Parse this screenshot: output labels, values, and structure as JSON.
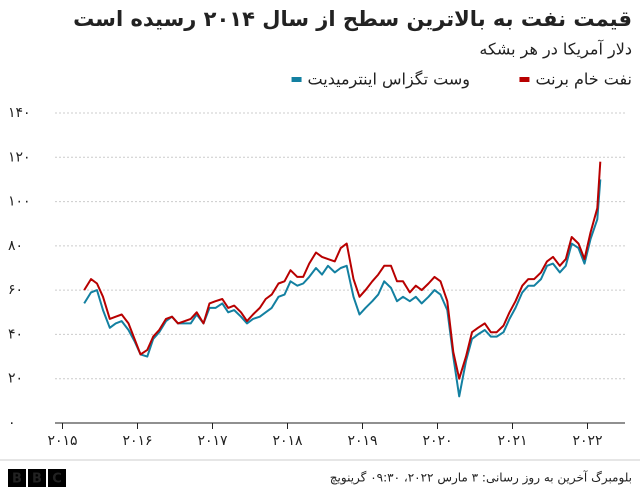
{
  "chart_data": {
    "type": "line",
    "title": "قیمت نفت به بالاترین سطح از سال ۲۰۱۴ رسیده است",
    "subtitle": "دلار آمریکا در هر بشکه",
    "x": [
      2015.29,
      2015.38,
      2015.46,
      2015.54,
      2015.63,
      2015.71,
      2015.79,
      2015.88,
      2015.96,
      2016.04,
      2016.13,
      2016.21,
      2016.29,
      2016.38,
      2016.46,
      2016.54,
      2016.63,
      2016.71,
      2016.79,
      2016.88,
      2016.96,
      2017.04,
      2017.13,
      2017.21,
      2017.29,
      2017.38,
      2017.46,
      2017.54,
      2017.63,
      2017.71,
      2017.79,
      2017.88,
      2017.96,
      2018.04,
      2018.13,
      2018.21,
      2018.29,
      2018.38,
      2018.46,
      2018.54,
      2018.63,
      2018.71,
      2018.79,
      2018.88,
      2018.96,
      2019.04,
      2019.13,
      2019.21,
      2019.29,
      2019.38,
      2019.46,
      2019.54,
      2019.63,
      2019.71,
      2019.79,
      2019.88,
      2019.96,
      2020.04,
      2020.13,
      2020.21,
      2020.29,
      2020.38,
      2020.46,
      2020.54,
      2020.63,
      2020.71,
      2020.79,
      2020.88,
      2020.96,
      2021.04,
      2021.13,
      2021.21,
      2021.29,
      2021.38,
      2021.46,
      2021.54,
      2021.63,
      2021.71,
      2021.79,
      2021.88,
      2021.96,
      2022.04,
      2022.13,
      2022.17
    ],
    "series": [
      {
        "name": "نفت خام برنت",
        "color": "#b80000",
        "values": [
          60,
          65,
          63,
          57,
          47,
          48,
          49,
          45,
          38,
          31,
          33,
          39,
          42,
          47,
          48,
          45,
          46,
          47,
          50,
          45,
          54,
          55,
          56,
          52,
          53,
          50,
          46,
          49,
          52,
          56,
          58,
          63,
          64,
          69,
          66,
          66,
          72,
          77,
          75,
          74,
          73,
          79,
          81,
          65,
          57,
          60,
          64,
          67,
          71,
          71,
          64,
          64,
          59,
          62,
          60,
          63,
          66,
          64,
          55,
          32,
          20,
          30,
          41,
          43,
          45,
          41,
          41,
          44,
          50,
          55,
          62,
          65,
          65,
          68,
          73,
          75,
          71,
          74,
          84,
          81,
          74,
          86,
          97,
          118
        ]
      },
      {
        "name": "وست تگزاس اینترمیدیت",
        "color": "#1380a1",
        "values": [
          54,
          59,
          60,
          51,
          43,
          45,
          46,
          42,
          37,
          31,
          30,
          38,
          41,
          46,
          48,
          45,
          45,
          45,
          49,
          45,
          52,
          52,
          54,
          50,
          51,
          48,
          45,
          47,
          48,
          50,
          52,
          57,
          58,
          64,
          62,
          63,
          66,
          70,
          67,
          71,
          68,
          70,
          71,
          57,
          49,
          52,
          55,
          58,
          64,
          61,
          55,
          57,
          55,
          57,
          54,
          57,
          60,
          58,
          51,
          30,
          12,
          28,
          38,
          40,
          42,
          39,
          39,
          41,
          47,
          52,
          59,
          62,
          62,
          65,
          71,
          72,
          68,
          71,
          81,
          79,
          72,
          83,
          92,
          110
        ]
      }
    ],
    "xlim": [
      2014.9,
      2022.5
    ],
    "xticks": [
      {
        "value": 2015,
        "label": "۲۰۱۵"
      },
      {
        "value": 2016,
        "label": "۲۰۱۶"
      },
      {
        "value": 2017,
        "label": "۲۰۱۷"
      },
      {
        "value": 2018,
        "label": "۲۰۱۸"
      },
      {
        "value": 2019,
        "label": "۲۰۱۹"
      },
      {
        "value": 2020,
        "label": "۲۰۲۰"
      },
      {
        "value": 2021,
        "label": "۲۰۲۱"
      },
      {
        "value": 2022,
        "label": "۲۰۲۲"
      }
    ],
    "ylim": [
      0,
      140
    ],
    "yticks": [
      {
        "value": 0,
        "label": "۰"
      },
      {
        "value": 20,
        "label": "۲۰"
      },
      {
        "value": 40,
        "label": "۴۰"
      },
      {
        "value": 60,
        "label": "۶۰"
      },
      {
        "value": 80,
        "label": "۸۰"
      },
      {
        "value": 100,
        "label": "۱۰۰"
      },
      {
        "value": 120,
        "label": "۱۲۰"
      },
      {
        "value": 140,
        "label": "۱۴۰"
      }
    ],
    "grid": true,
    "source": "بلومبرگ آخرین به روز رسانی: ۳ مارس ۲۰۲۲، ۰۹:۳۰ گرینویچ",
    "logo": [
      "B",
      "B",
      "C"
    ]
  }
}
